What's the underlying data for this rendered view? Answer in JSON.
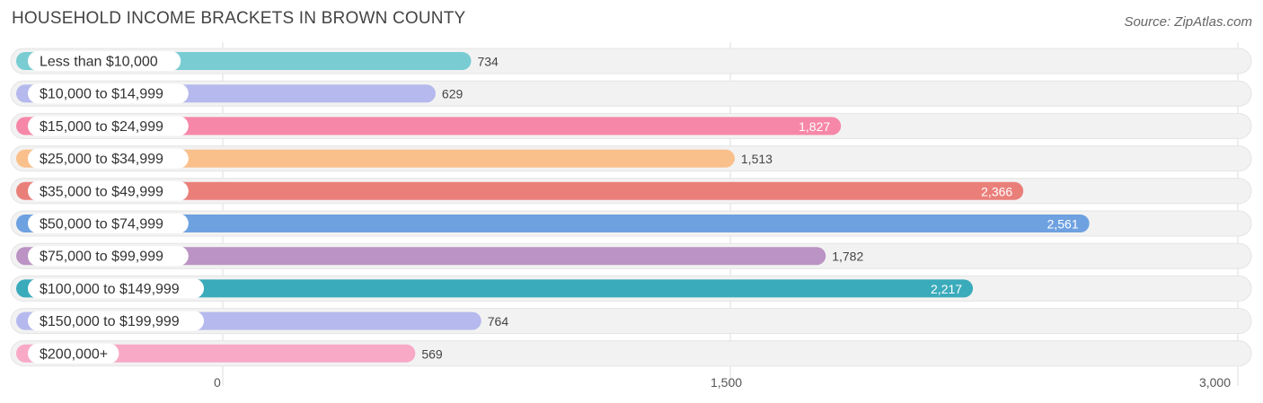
{
  "header": {
    "title": "HOUSEHOLD INCOME BRACKETS IN BROWN COUNTY",
    "source": "Source: ZipAtlas.com"
  },
  "chart_data": {
    "type": "bar",
    "orientation": "horizontal",
    "title": "HOUSEHOLD INCOME BRACKETS IN BROWN COUNTY",
    "categories": [
      "Less than $10,000",
      "$10,000 to $14,999",
      "$15,000 to $24,999",
      "$25,000 to $34,999",
      "$35,000 to $49,999",
      "$50,000 to $74,999",
      "$75,000 to $99,999",
      "$100,000 to $149,999",
      "$150,000 to $199,999",
      "$200,000+"
    ],
    "values": [
      734,
      629,
      1827,
      1513,
      2366,
      2561,
      1782,
      2217,
      764,
      569
    ],
    "value_labels": [
      "734",
      "629",
      "1,827",
      "1,513",
      "2,366",
      "2,561",
      "1,782",
      "2,217",
      "764",
      "569"
    ],
    "colors": [
      "#7accd3",
      "#b5b9ed",
      "#f687a9",
      "#fac08b",
      "#ea7f7a",
      "#6ea1e0",
      "#bb93c4",
      "#3aabbb",
      "#b5b9ed",
      "#f8a9c6"
    ],
    "xlim": [
      0,
      3000
    ],
    "x_ticks": [
      0,
      1500,
      3000
    ],
    "x_tick_labels": [
      "0",
      "1,500",
      "3,000"
    ],
    "grid": true
  }
}
